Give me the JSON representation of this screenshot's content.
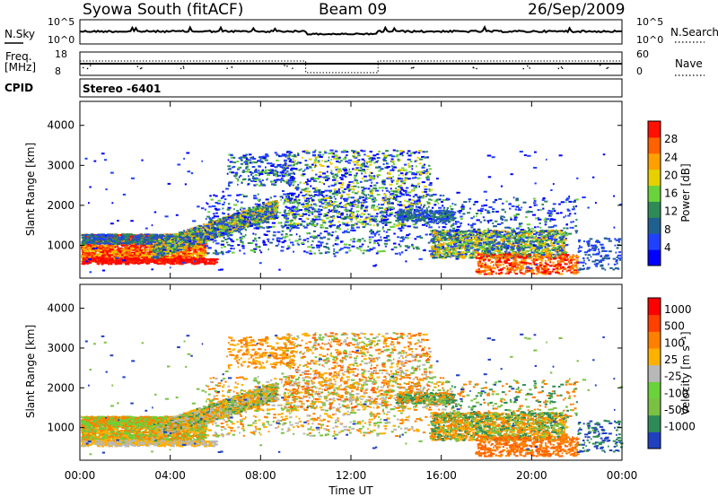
{
  "header": {
    "station": "Syowa South (fitACF)",
    "beam": "Beam 09",
    "date": "26/Sep/2009"
  },
  "top_panels": {
    "nsky_label": "N.Sky",
    "nsky_ticks": [
      "10^5",
      "10^0"
    ],
    "nsearch_label": "N.Search",
    "nsearch_ticks": [
      "10^5",
      "10^0"
    ],
    "freq_label": "Freq.",
    "freq_unit": "[MHz]",
    "freq_ticks": [
      "18",
      "8"
    ],
    "nave_label": "Nave",
    "nave_ticks": [
      "60",
      "0"
    ],
    "cpid_label": "CPID",
    "cpid_value": "Stereo -6401"
  },
  "chart_data": [
    {
      "type": "heatmap",
      "name": "power",
      "ylabel": "Slant Range [km]",
      "ylim": [
        180,
        4600
      ],
      "yticks": [
        "4000",
        "3000",
        "2000",
        "1000"
      ],
      "colorbar_label": "Power [dB]",
      "colorbar_ticks": [
        "28",
        "24",
        "20",
        "16",
        "12",
        "8",
        "4"
      ],
      "colorbar_colors": [
        "#0000ff",
        "#2040ff",
        "#206090",
        "#2e8b57",
        "#6ad23a",
        "#e6d000",
        "#ffa000",
        "#ff6000",
        "#ff1000"
      ],
      "regions": [
        {
          "t": [
            0.0,
            5.5
          ],
          "r": [
            600,
            1300
          ],
          "level": "high"
        },
        {
          "t": [
            3.5,
            8.5
          ],
          "r": [
            900,
            2000
          ],
          "level": "mid"
        },
        {
          "t": [
            9.0,
            16.5
          ],
          "r": [
            1500,
            3400
          ],
          "level": "low-mid"
        },
        {
          "t": [
            15.5,
            21.5
          ],
          "r": [
            400,
            1800
          ],
          "level": "mid"
        }
      ]
    },
    {
      "type": "heatmap",
      "name": "velocity",
      "ylabel": "Slant Range [km]",
      "ylim": [
        180,
        4600
      ],
      "yticks": [
        "4000",
        "3000",
        "2000",
        "1000"
      ],
      "xlabel": "Time UT",
      "xticks": [
        "00:00",
        "04:00",
        "08:00",
        "12:00",
        "16:00",
        "20:00",
        "00:00"
      ],
      "colorbar_label": "Velocity [m s⁻¹]",
      "colorbar_ticks": [
        "1000",
        "500",
        "100",
        "25",
        "-25",
        "-100",
        "-500",
        "-1000"
      ],
      "colorbar_colors": [
        "#2040c0",
        "#2e8b57",
        "#7ac143",
        "#6ad23a",
        "#b8b8b8",
        "#ffb000",
        "#ff8000",
        "#ff4000",
        "#ff0000"
      ]
    }
  ]
}
